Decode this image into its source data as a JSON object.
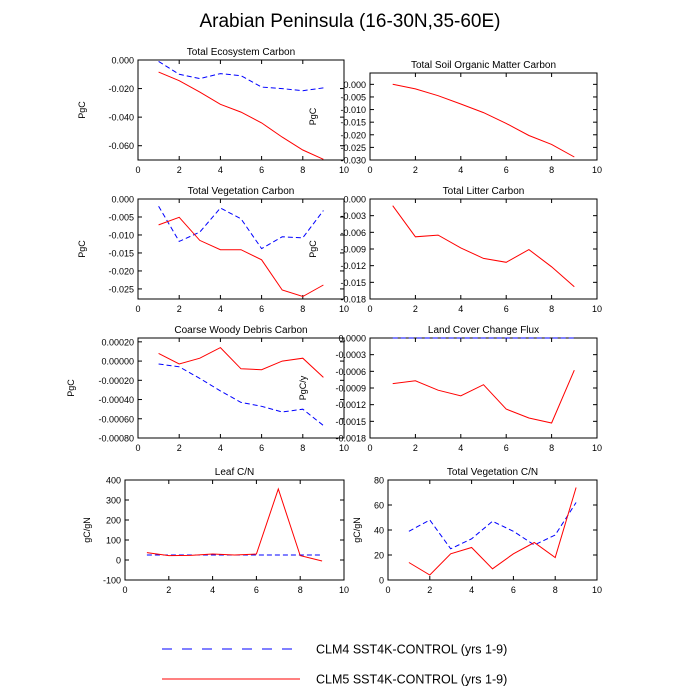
{
  "title": "Arabian Peninsula (16-30N,35-60E)",
  "colors": {
    "clm4": "#0000ff",
    "clm5": "#ff0000",
    "axis": "#000000"
  },
  "legend": [
    {
      "label": "CLM4 SST4K-CONTROL (yrs 1-9)",
      "series": "clm4",
      "dash": "dashed"
    },
    {
      "label": "CLM5 SST4K-CONTROL (yrs 1-9)",
      "series": "clm5",
      "dash": "solid"
    }
  ],
  "chart_data": [
    {
      "type": "line",
      "title": "Total Ecosystem Carbon",
      "ylabel": "PgC",
      "xlim": [
        0,
        10
      ],
      "ylim": [
        -0.07,
        0.0
      ],
      "xticks": [
        "0",
        "2",
        "4",
        "6",
        "8",
        "10"
      ],
      "yticks": [
        "0.000",
        "-0.020",
        "-0.040",
        "-0.060"
      ],
      "yticks_values": [
        0.0,
        -0.02,
        -0.04,
        -0.06
      ],
      "x": [
        1,
        2,
        3,
        4,
        5,
        6,
        7,
        8,
        9
      ],
      "series": [
        {
          "name": "CLM4 SST4K-CONTROL (yrs 1-9)",
          "values": [
            -0.001,
            -0.01,
            -0.013,
            -0.0095,
            -0.011,
            -0.019,
            -0.02,
            -0.0215,
            -0.0195
          ]
        },
        {
          "name": "CLM5 SST4K-CONTROL (yrs 1-9)",
          "values": [
            -0.0085,
            -0.0145,
            -0.0225,
            -0.031,
            -0.0365,
            -0.044,
            -0.054,
            -0.063,
            -0.0695
          ]
        }
      ]
    },
    {
      "type": "line",
      "title": "Total Soil Organic Matter Carbon",
      "ylabel": "PgC",
      "xlim": [
        0,
        10
      ],
      "ylim": [
        -0.03,
        0.0045
      ],
      "xticks": [
        "0",
        "2",
        "4",
        "6",
        "8",
        "10"
      ],
      "yticks": [
        "0.000",
        "-0.005",
        "-0.010",
        "-0.015",
        "-0.020",
        "-0.025",
        "-0.030"
      ],
      "yticks_values": [
        0.0,
        -0.005,
        -0.01,
        -0.015,
        -0.02,
        -0.025,
        -0.03
      ],
      "x": [
        1,
        2,
        3,
        4,
        5,
        6,
        7,
        8,
        9
      ],
      "series": [
        {
          "name": "CLM5 SST4K-CONTROL (yrs 1-9)",
          "values": [
            0.0,
            -0.0018,
            -0.0045,
            -0.0078,
            -0.0112,
            -0.0155,
            -0.0203,
            -0.0238,
            -0.0288
          ]
        }
      ]
    },
    {
      "type": "line",
      "title": "Total Vegetation Carbon",
      "ylabel": "PgC",
      "xlim": [
        0,
        10
      ],
      "ylim": [
        -0.0278,
        0.0
      ],
      "xticks": [
        "0",
        "2",
        "4",
        "6",
        "8",
        "10"
      ],
      "yticks": [
        "0.000",
        "-0.005",
        "-0.010",
        "-0.015",
        "-0.020",
        "-0.025"
      ],
      "yticks_values": [
        0.0,
        -0.005,
        -0.01,
        -0.015,
        -0.02,
        -0.025
      ],
      "x": [
        1,
        2,
        3,
        4,
        5,
        6,
        7,
        8,
        9
      ],
      "series": [
        {
          "name": "CLM4 SST4K-CONTROL (yrs 1-9)",
          "values": [
            -0.002,
            -0.0118,
            -0.0092,
            -0.0025,
            -0.0055,
            -0.0138,
            -0.0105,
            -0.0108,
            -0.0032
          ]
        },
        {
          "name": "CLM5 SST4K-CONTROL (yrs 1-9)",
          "values": [
            -0.0072,
            -0.0051,
            -0.0115,
            -0.0141,
            -0.0141,
            -0.0169,
            -0.0253,
            -0.0271,
            -0.0239
          ]
        }
      ]
    },
    {
      "type": "line",
      "title": "Total Litter Carbon",
      "ylabel": "PgC",
      "xlim": [
        0,
        10
      ],
      "ylim": [
        -0.018,
        0.0
      ],
      "xticks": [
        "0",
        "2",
        "4",
        "6",
        "8",
        "10"
      ],
      "yticks": [
        "0.000",
        "-0.003",
        "-0.006",
        "-0.009",
        "-0.012",
        "-0.015",
        "-0.018"
      ],
      "yticks_values": [
        0.0,
        -0.003,
        -0.006,
        -0.009,
        -0.012,
        -0.015,
        -0.018
      ],
      "x": [
        1,
        2,
        3,
        4,
        5,
        6,
        7,
        8,
        9
      ],
      "series": [
        {
          "name": "CLM5 SST4K-CONTROL (yrs 1-9)",
          "values": [
            -0.0012,
            -0.0068,
            -0.0065,
            -0.0088,
            -0.0107,
            -0.0114,
            -0.0091,
            -0.0122,
            -0.0158
          ]
        }
      ]
    },
    {
      "type": "line",
      "title": "Coarse Woody Debris Carbon",
      "ylabel": "PgC",
      "xlim": [
        0,
        10
      ],
      "ylim": [
        -0.0008,
        0.00024
      ],
      "xticks": [
        "0",
        "2",
        "4",
        "6",
        "8",
        "10"
      ],
      "yticks": [
        "0.00020",
        "0.00000",
        "-0.00020",
        "-0.00040",
        "-0.00060",
        "-0.00080"
      ],
      "yticks_values": [
        0.0002,
        0.0,
        -0.0002,
        -0.0004,
        -0.0006,
        -0.0008
      ],
      "x": [
        1,
        2,
        3,
        4,
        5,
        6,
        7,
        8,
        9
      ],
      "series": [
        {
          "name": "CLM4 SST4K-CONTROL (yrs 1-9)",
          "values": [
            -3e-05,
            -6e-05,
            -0.00018,
            -0.00031,
            -0.00043,
            -0.00047,
            -0.00053,
            -0.0005,
            -0.00067
          ]
        },
        {
          "name": "CLM5 SST4K-CONTROL (yrs 1-9)",
          "values": [
            8e-05,
            -3e-05,
            3e-05,
            0.00014,
            -8e-05,
            -9e-05,
            0.0,
            3e-05,
            -0.00017
          ]
        }
      ]
    },
    {
      "type": "line",
      "title": "Land Cover Change Flux",
      "ylabel": "PgC/y",
      "xlim": [
        0,
        10
      ],
      "ylim": [
        -0.0018,
        0.0
      ],
      "xticks": [
        "0",
        "2",
        "4",
        "6",
        "8",
        "10"
      ],
      "yticks": [
        "0.0000",
        "-0.0003",
        "-0.0006",
        "-0.0009",
        "-0.0012",
        "-0.0015",
        "-0.0018"
      ],
      "yticks_values": [
        0.0,
        -0.0003,
        -0.0006,
        -0.0009,
        -0.0012,
        -0.0015,
        -0.0018
      ],
      "x": [
        1,
        2,
        3,
        4,
        5,
        6,
        7,
        8,
        9
      ],
      "series": [
        {
          "name": "CLM4 SST4K-CONTROL (yrs 1-9)",
          "values": [
            0,
            0,
            0,
            0,
            0,
            0,
            0,
            0,
            0
          ]
        },
        {
          "name": "CLM5 SST4K-CONTROL (yrs 1-9)",
          "values": [
            -0.00082,
            -0.00077,
            -0.00094,
            -0.00104,
            -0.00084,
            -0.00128,
            -0.00144,
            -0.00153,
            -0.00058
          ]
        }
      ]
    },
    {
      "type": "line",
      "title": "Leaf C/N",
      "ylabel": "gC/gN",
      "xlim": [
        0,
        10
      ],
      "ylim": [
        -100,
        400
      ],
      "xticks": [
        "0",
        "2",
        "4",
        "6",
        "8",
        "10"
      ],
      "yticks": [
        "400",
        "300",
        "200",
        "100",
        "0",
        "-100"
      ],
      "yticks_values": [
        400,
        300,
        200,
        100,
        0,
        -100
      ],
      "x": [
        1,
        2,
        3,
        4,
        5,
        6,
        7,
        8,
        9
      ],
      "series": [
        {
          "name": "CLM4 SST4K-CONTROL (yrs 1-9)",
          "values": [
            25,
            25,
            25,
            25,
            25,
            25,
            25,
            25,
            25
          ]
        },
        {
          "name": "CLM5 SST4K-CONTROL (yrs 1-9)",
          "values": [
            37,
            22,
            23,
            30,
            25,
            30,
            355,
            22,
            -5
          ]
        }
      ]
    },
    {
      "type": "line",
      "title": "Total Vegetation C/N",
      "ylabel": "gC/gN",
      "xlim": [
        0,
        10
      ],
      "ylim": [
        0,
        80
      ],
      "xticks": [
        "0",
        "2",
        "4",
        "6",
        "8",
        "10"
      ],
      "yticks": [
        "80",
        "60",
        "40",
        "20",
        "0"
      ],
      "yticks_values": [
        80,
        60,
        40,
        20,
        0
      ],
      "x": [
        1,
        2,
        3,
        4,
        5,
        6,
        7,
        8,
        9
      ],
      "series": [
        {
          "name": "CLM4 SST4K-CONTROL (yrs 1-9)",
          "values": [
            39,
            48,
            25,
            33,
            47,
            39,
            28,
            36,
            62
          ]
        },
        {
          "name": "CLM5 SST4K-CONTROL (yrs 1-9)",
          "values": [
            14,
            4,
            21,
            26,
            9,
            21,
            30,
            18,
            74
          ]
        }
      ]
    }
  ]
}
